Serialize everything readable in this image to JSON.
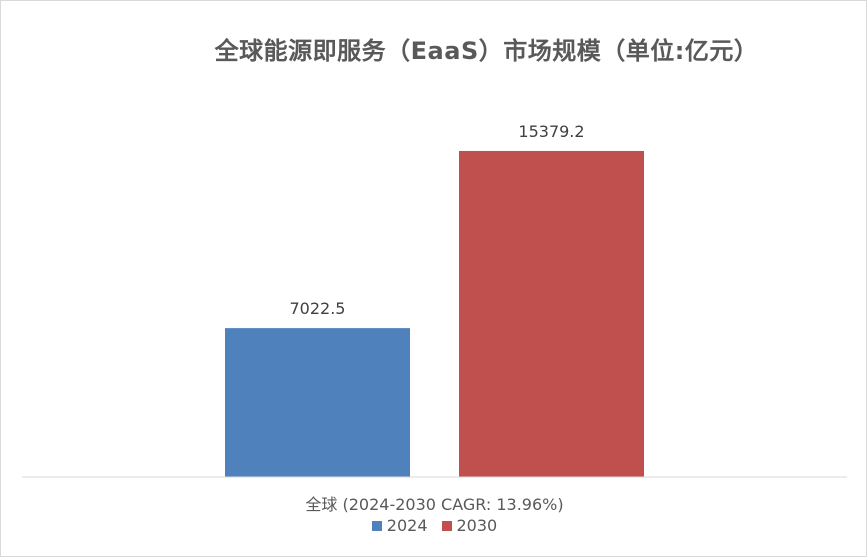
{
  "chart_data": {
    "type": "bar",
    "title": "全球能源即服务（EaaS）市场规模（单位:亿元）",
    "categories": [
      "全球 (2024-2030 CAGR: 13.96%)"
    ],
    "series": [
      {
        "name": "2024",
        "values": [
          7022.5
        ],
        "color": "#4f81bd"
      },
      {
        "name": "2030",
        "values": [
          15379.2
        ],
        "color": "#c0504d"
      }
    ],
    "data_labels": [
      "7022.5",
      "15379.2"
    ],
    "xlabel": "",
    "ylabel": "",
    "ylim": [
      0,
      20000
    ],
    "grid": false,
    "legend_position": "bottom"
  }
}
